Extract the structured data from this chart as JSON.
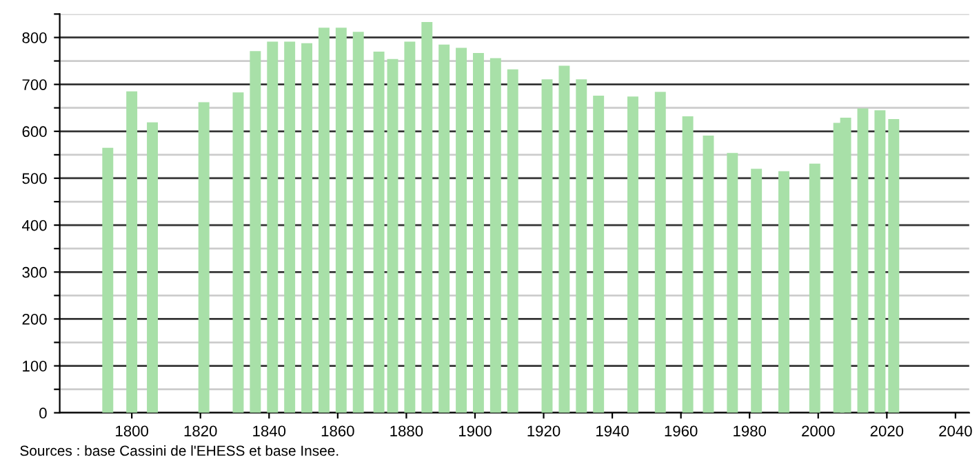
{
  "chart_data": {
    "type": "bar",
    "color": "#a8e0a8",
    "x": [
      1793,
      1800,
      1806,
      1821,
      1831,
      1836,
      1841,
      1846,
      1851,
      1856,
      1861,
      1866,
      1872,
      1876,
      1881,
      1886,
      1891,
      1896,
      1901,
      1906,
      1911,
      1921,
      1926,
      1931,
      1936,
      1946,
      1954,
      1962,
      1968,
      1975,
      1982,
      1990,
      1999,
      2006,
      2008,
      2013,
      2018,
      2022
    ],
    "values": [
      565,
      685,
      619,
      662,
      683,
      771,
      791,
      791,
      788,
      821,
      821,
      812,
      770,
      754,
      791,
      833,
      785,
      778,
      767,
      756,
      732,
      711,
      740,
      711,
      676,
      674,
      684,
      632,
      591,
      554,
      520,
      515,
      531,
      618,
      629,
      649,
      645,
      626
    ],
    "xlim": [
      1779,
      2044
    ],
    "xticks": [
      1800,
      1820,
      1840,
      1860,
      1880,
      1900,
      1920,
      1940,
      1960,
      1980,
      2000,
      2020,
      2040
    ],
    "ylim": [
      0,
      850
    ],
    "yticks": [
      0,
      {
        "value": 50,
        "label": null
      },
      100,
      {
        "value": 150,
        "label": null
      },
      200,
      {
        "value": 250,
        "label": null
      },
      300,
      {
        "value": 350,
        "label": null
      },
      400,
      {
        "value": 450,
        "label": null
      },
      500,
      {
        "value": 550,
        "label": null
      },
      600,
      {
        "value": 650,
        "label": null
      },
      700,
      {
        "value": 750,
        "label": null
      },
      800,
      {
        "value": 850,
        "label": null
      }
    ],
    "grid": "y",
    "annotations": [
      "Sources : base Cassini de l'EHESS et base Insee."
    ]
  }
}
